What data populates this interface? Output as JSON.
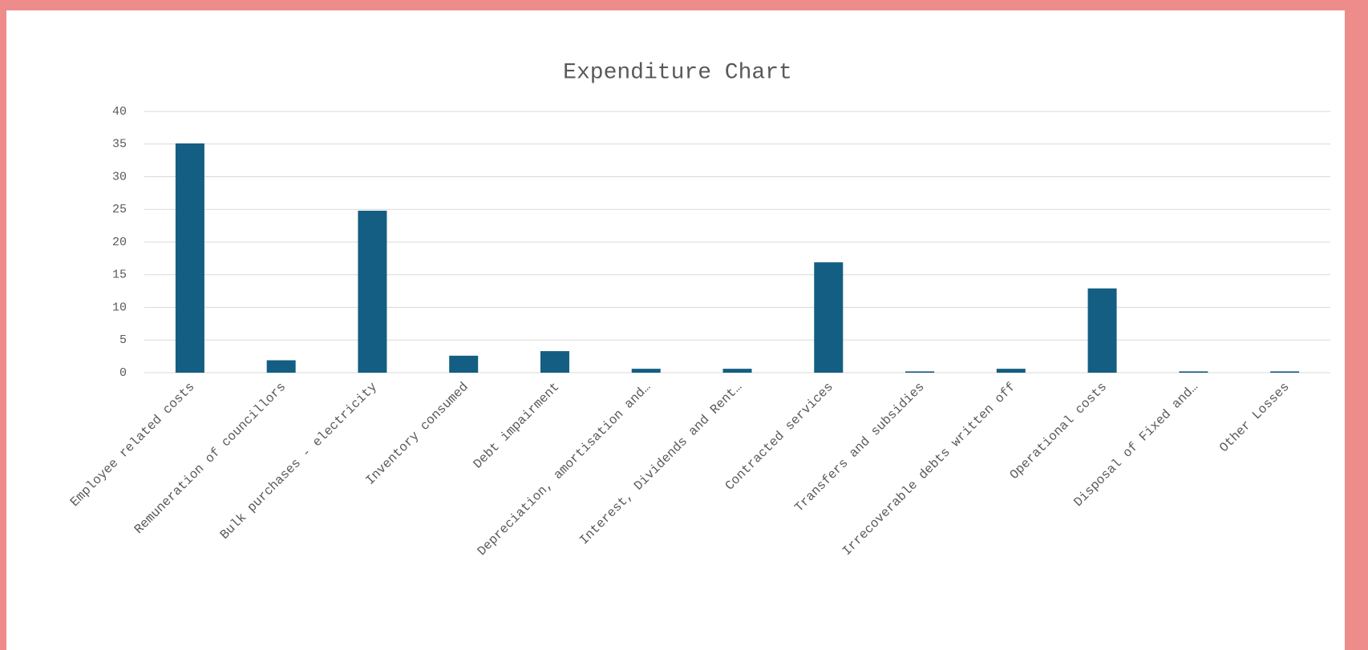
{
  "chart_data": {
    "type": "bar",
    "title": "Expenditure Chart",
    "categories": [
      "Employee related costs",
      "Remuneration of councillors",
      "Bulk purchases - electricity",
      "Inventory consumed",
      "Debt impairment",
      "Depreciation, amortisation and…",
      "Interest, Dividends and Rent…",
      "Contracted services",
      "Transfers and subsidies",
      "Irrecoverable debts written off",
      "Operational costs",
      "Disposal of Fixed and…",
      "Other Losses"
    ],
    "values": [
      35.1,
      1.9,
      24.8,
      2.6,
      3.3,
      0.6,
      0.6,
      16.9,
      0.2,
      0.6,
      12.9,
      0.2,
      0.2
    ],
    "color": "#135e82",
    "ylim": [
      0,
      40
    ],
    "yticks": [
      0,
      5,
      10,
      15,
      20,
      25,
      30,
      35,
      40
    ],
    "grid": true
  }
}
